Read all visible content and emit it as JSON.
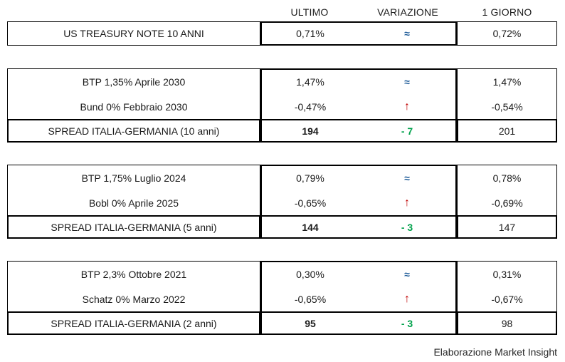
{
  "header": {
    "columns": [
      "ULTIMO",
      "VARIAZIONE",
      "1 GIORNO"
    ]
  },
  "colors": {
    "border": "#000000",
    "text": "#1a1a1a",
    "approx_blue": "#1f5c99",
    "up_red": "#c00000",
    "delta_green": "#00a14b"
  },
  "tables": [
    {
      "rows": [
        {
          "label": "US TREASURY NOTE 10 ANNI",
          "ultimo": "0,71%",
          "variazione": "≈",
          "giorno": "0,72%"
        }
      ]
    },
    {
      "rows": [
        {
          "label": "BTP 1,35% Aprile 2030",
          "ultimo": "1,47%",
          "variazione": "≈",
          "giorno": "1,47%"
        },
        {
          "label": "Bund 0% Febbraio 2030",
          "ultimo": "-0,47%",
          "variazione": "↑",
          "giorno": "-0,54%"
        }
      ],
      "spread": {
        "label": "SPREAD ITALIA-GERMANIA (10 anni)",
        "ultimo": "194",
        "variazione": "- 7",
        "giorno": "201"
      }
    },
    {
      "rows": [
        {
          "label": "BTP 1,75% Luglio 2024",
          "ultimo": "0,79%",
          "variazione": "≈",
          "giorno": "0,78%"
        },
        {
          "label": "Bobl 0% Aprile 2025",
          "ultimo": "-0,65%",
          "variazione": "↑",
          "giorno": "-0,69%"
        }
      ],
      "spread": {
        "label": "SPREAD ITALIA-GERMANIA (5 anni)",
        "ultimo": "144",
        "variazione": "- 3",
        "giorno": "147"
      }
    },
    {
      "rows": [
        {
          "label": "BTP 2,3% Ottobre 2021",
          "ultimo": "0,30%",
          "variazione": "≈",
          "giorno": "0,31%"
        },
        {
          "label": "Schatz 0% Marzo 2022",
          "ultimo": "-0,65%",
          "variazione": "↑",
          "giorno": "-0,67%"
        }
      ],
      "spread": {
        "label": "SPREAD ITALIA-GERMANIA (2 anni)",
        "ultimo": "95",
        "variazione": "- 3",
        "giorno": "98"
      }
    }
  ],
  "footer": {
    "credit": "Elaborazione Market Insight"
  }
}
